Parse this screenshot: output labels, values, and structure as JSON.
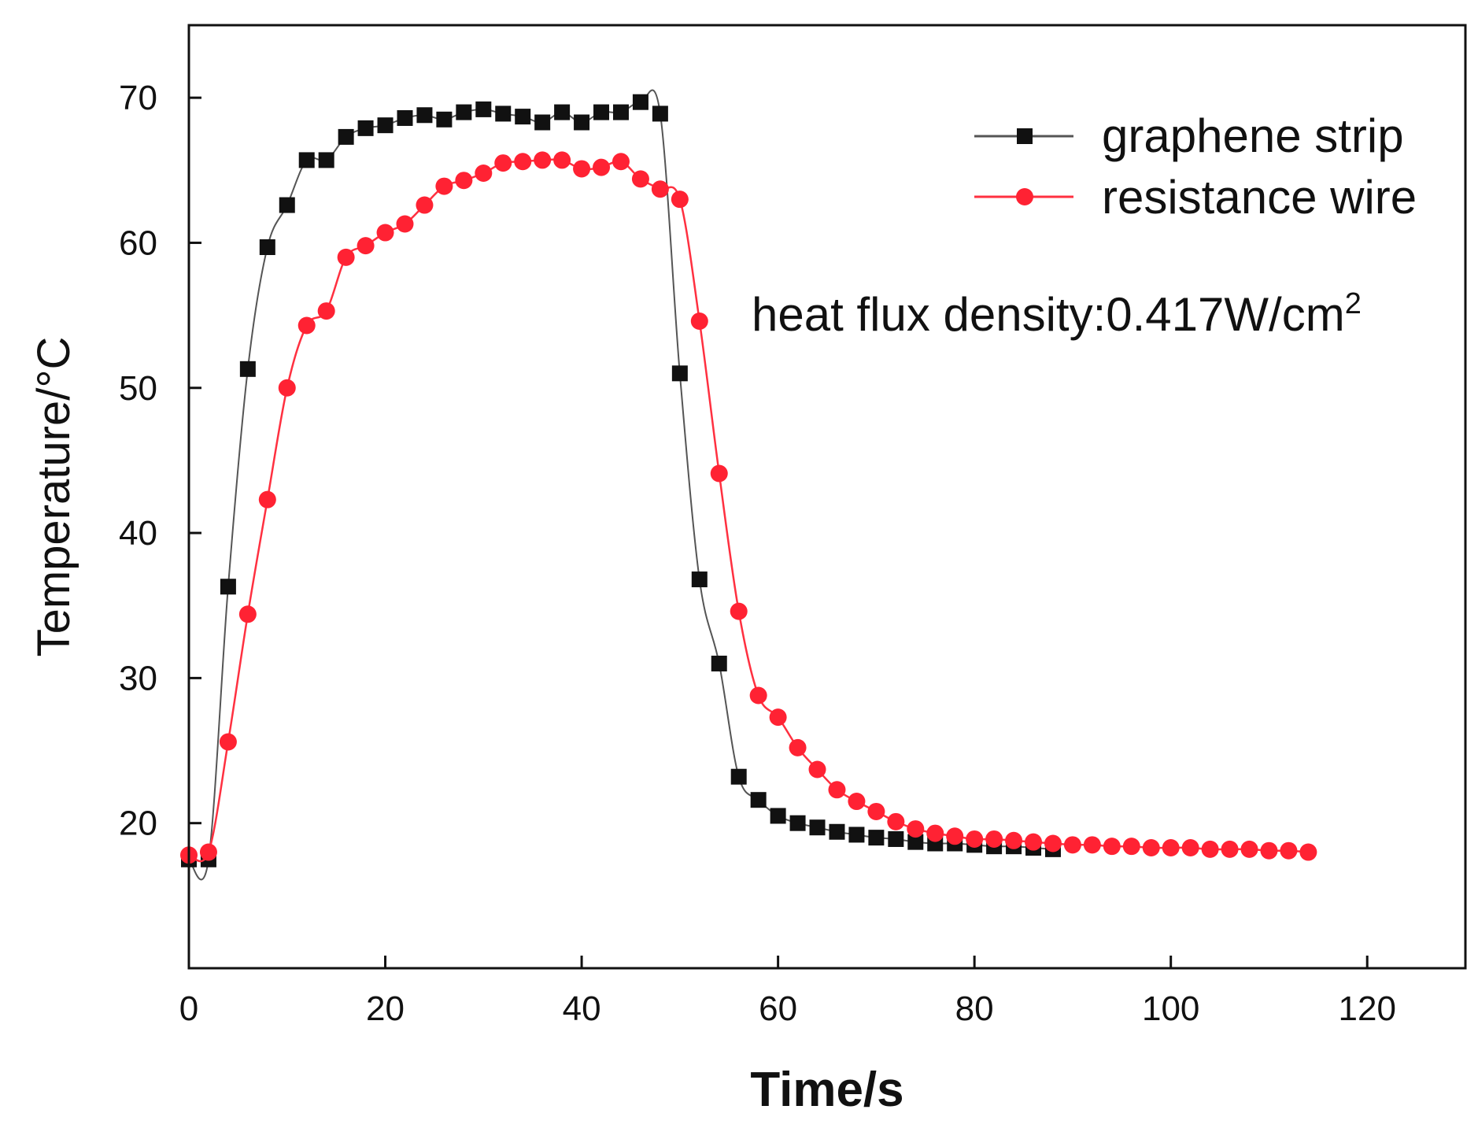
{
  "chart_data": {
    "type": "line",
    "title": "",
    "xlabel": "Time/s",
    "ylabel": "Temperature/°C",
    "xlim": [
      0,
      130
    ],
    "ylim": [
      10,
      75
    ],
    "xticks": [
      0,
      20,
      40,
      60,
      80,
      100,
      120
    ],
    "xtick_labels": [
      "0",
      "20",
      "40",
      "60",
      "80",
      "100",
      "120"
    ],
    "yticks": [
      20,
      30,
      40,
      50,
      60,
      70
    ],
    "ytick_labels": [
      "20",
      "30",
      "40",
      "50",
      "60",
      "70"
    ],
    "grid": false,
    "legend_position": "top-right",
    "annotation": {
      "text": "heat flux density:0.417W/cm",
      "superscript": "2"
    },
    "series": [
      {
        "name": "graphene strip",
        "color": "#111111",
        "line_color": "#555555",
        "marker": "square",
        "x": [
          0,
          2,
          4,
          6,
          8,
          10,
          12,
          14,
          16,
          18,
          20,
          22,
          24,
          26,
          28,
          30,
          32,
          34,
          36,
          38,
          40,
          42,
          44,
          46,
          48,
          50,
          52,
          54,
          56,
          58,
          60,
          62,
          64,
          66,
          68,
          70,
          72,
          74,
          76,
          78,
          80,
          82,
          84,
          86,
          88
        ],
        "y": [
          17.5,
          17.5,
          36.3,
          51.3,
          59.7,
          62.6,
          65.7,
          65.7,
          67.3,
          67.9,
          68.1,
          68.6,
          68.8,
          68.5,
          69.0,
          69.2,
          68.9,
          68.7,
          68.3,
          69.0,
          68.3,
          69.0,
          69.0,
          69.7,
          68.9,
          51.0,
          36.8,
          31.0,
          23.2,
          21.6,
          20.5,
          20.0,
          19.7,
          19.4,
          19.2,
          19.0,
          18.9,
          18.7,
          18.6,
          18.6,
          18.5,
          18.4,
          18.4,
          18.3,
          18.2
        ]
      },
      {
        "name": "resistance wire",
        "color": "#ff2233",
        "line_color": "#ff3040",
        "marker": "circle",
        "x": [
          0,
          2,
          4,
          6,
          8,
          10,
          12,
          14,
          16,
          18,
          20,
          22,
          24,
          26,
          28,
          30,
          32,
          34,
          36,
          38,
          40,
          42,
          44,
          46,
          48,
          50,
          52,
          54,
          56,
          58,
          60,
          62,
          64,
          66,
          68,
          70,
          72,
          74,
          76,
          78,
          80,
          82,
          84,
          86,
          88,
          90,
          92,
          94,
          96,
          98,
          100,
          102,
          104,
          106,
          108,
          110,
          112,
          114
        ],
        "y": [
          17.8,
          18.0,
          25.6,
          34.4,
          42.3,
          50.0,
          54.3,
          55.3,
          59.0,
          59.8,
          60.7,
          61.3,
          62.6,
          63.9,
          64.3,
          64.8,
          65.5,
          65.6,
          65.7,
          65.7,
          65.1,
          65.2,
          65.6,
          64.4,
          63.7,
          63.0,
          54.6,
          44.1,
          34.6,
          28.8,
          27.3,
          25.2,
          23.7,
          22.3,
          21.5,
          20.8,
          20.1,
          19.6,
          19.3,
          19.1,
          18.9,
          18.9,
          18.8,
          18.7,
          18.6,
          18.5,
          18.5,
          18.4,
          18.4,
          18.3,
          18.3,
          18.3,
          18.2,
          18.2,
          18.2,
          18.1,
          18.1,
          18.0
        ]
      }
    ]
  }
}
